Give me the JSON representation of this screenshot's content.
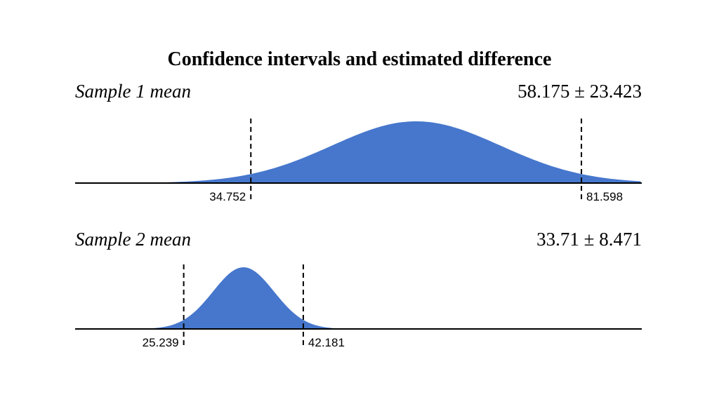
{
  "chart_data": {
    "type": "area",
    "title": "Confidence intervals and estimated difference",
    "x_range": [
      0,
      100
    ],
    "fill_color": "#4677cc",
    "axis_color": "#000000",
    "panels": [
      {
        "label": "Sample 1 mean",
        "value_text": "58.175 ± 23.423",
        "mean": 58.175,
        "margin": 23.423,
        "lower": 34.752,
        "upper": 81.598,
        "lower_label": "34.752",
        "upper_label": "81.598"
      },
      {
        "label": "Sample 2 mean",
        "value_text": "33.71 ± 8.471",
        "mean": 33.71,
        "margin": 8.471,
        "lower": 25.239,
        "upper": 42.181,
        "lower_label": "25.239",
        "upper_label": "42.181"
      }
    ]
  }
}
